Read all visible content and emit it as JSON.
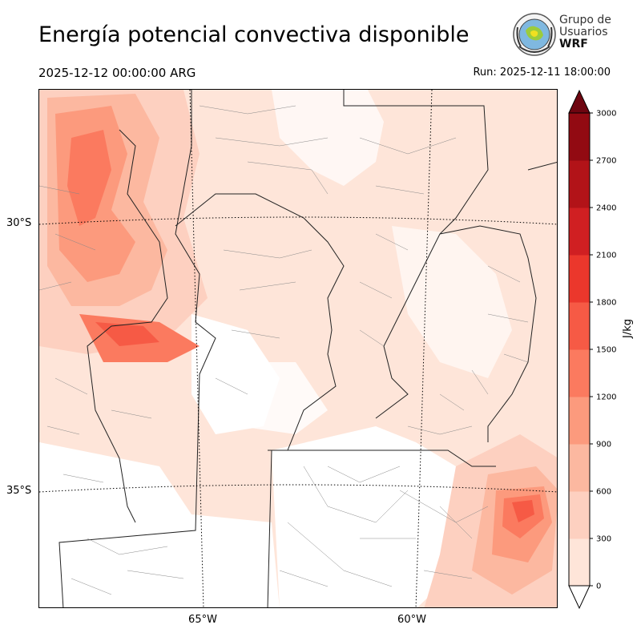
{
  "header": {
    "title": "Energía potencial convectiva disponible",
    "valid_time": "2025-12-12 00:00:00 ARG",
    "run_time": "Run: 2025-12-11 18:00:00"
  },
  "logo": {
    "line1": "Grupo de",
    "line2": "Usuarios",
    "line3": "WRF"
  },
  "map": {
    "lat_labels": [
      "30°S",
      "35°S"
    ],
    "lon_labels": [
      "65°W",
      "60°W"
    ],
    "field": "CAPE",
    "max_region": "south-east near Buenos Aires coast"
  },
  "colorbar": {
    "units": "J/kg",
    "levels": [
      0,
      300,
      600,
      900,
      1200,
      1500,
      1800,
      2100,
      2400,
      2700,
      3000
    ],
    "colors": [
      "#fee5d9",
      "#fdd0c0",
      "#fcb8a0",
      "#fc9a7d",
      "#fb7a5f",
      "#f65a45",
      "#eb372c",
      "#d01f22",
      "#b21318",
      "#920a12",
      "#6e0510"
    ],
    "extend": "both"
  }
}
